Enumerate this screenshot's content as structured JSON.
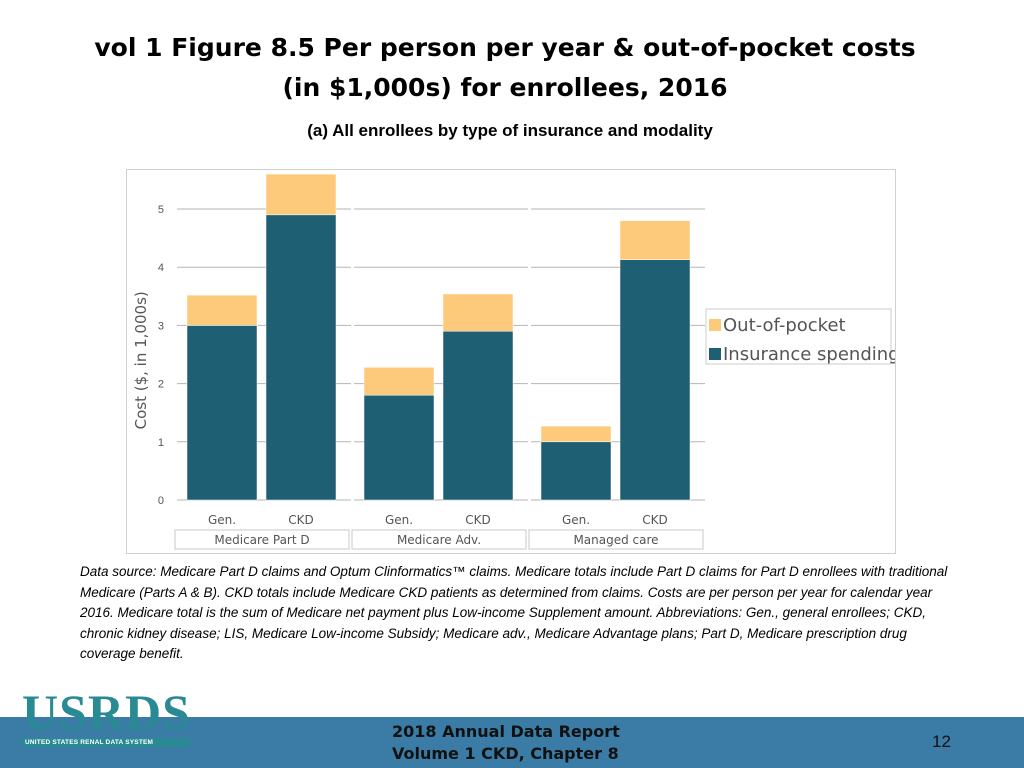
{
  "header": {
    "title_line1": "vol 1 Figure 8.5 Per person per year & out-of-pocket costs",
    "title_line2": "(in $1,000s) for enrollees, 2016",
    "subtitle": "(a) All enrollees by type of insurance and modality"
  },
  "chart_data": {
    "type": "bar",
    "stacked": true,
    "groups": [
      {
        "label": "Medicare Part D",
        "categories": [
          "Gen.",
          "CKD"
        ]
      },
      {
        "label": "Medicare Adv.",
        "categories": [
          "Gen.",
          "CKD"
        ]
      },
      {
        "label": "Managed care",
        "categories": [
          "Gen.",
          "CKD"
        ]
      }
    ],
    "series": [
      {
        "name": "Insurance spending",
        "color": "#1f5f73",
        "values": [
          3.0,
          4.9,
          1.8,
          2.9,
          1.0,
          4.13
        ]
      },
      {
        "name": "Out-of-pocket",
        "color": "#fdc97b",
        "values": [
          0.52,
          0.7,
          0.48,
          0.64,
          0.27,
          0.67
        ]
      }
    ],
    "ylabel": "Cost ($, in 1,000s)",
    "ylim": [
      0,
      5.5
    ],
    "yticks": [
      "0",
      "1",
      "2",
      "3",
      "4",
      "5"
    ],
    "legend_order": [
      "Out-of-pocket",
      "Insurance spending"
    ],
    "legend_position": "right",
    "grid": true
  },
  "footnote": "Data source: Medicare Part D claims and Optum Clinformatics™ claims. Medicare totals include Part D claims for Part D enrollees with traditional Medicare (Parts A & B). CKD totals include Medicare CKD patients as determined from claims. Costs are per person per year for calendar year 2016. Medicare total is the sum of Medicare net payment plus Low-income Supplement amount. Abbreviations: Gen., general enrollees; CKD, chronic kidney disease; LIS, Medicare Low-income Subsidy; Medicare adv., Medicare Advantage plans; Part D, Medicare prescription drug coverage benefit.",
  "logo": {
    "text": "USRDS",
    "subtext": "UNITED STATES RENAL DATA SYSTEM"
  },
  "footer": {
    "line1": "2018 Annual Data Report",
    "line2": "Volume 1 CKD, Chapter 8",
    "page_number": "12"
  }
}
